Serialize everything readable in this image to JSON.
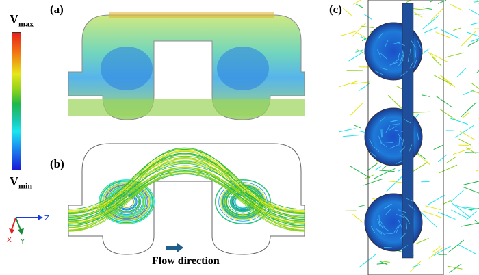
{
  "legend": {
    "vmax_main": "V",
    "vmax_sub": "max",
    "vmin_main": "V",
    "vmin_sub": "min"
  },
  "axes": {
    "z": "Z",
    "x": "X",
    "y": "Y"
  },
  "panels": {
    "a": "(a)",
    "b": "(b)",
    "c": "(c)"
  },
  "flow_label": "Flow direction",
  "colors": {
    "vmax": "#e8201a",
    "vmin": "#1a1ad8",
    "arrow": "#1f5f8a"
  }
}
